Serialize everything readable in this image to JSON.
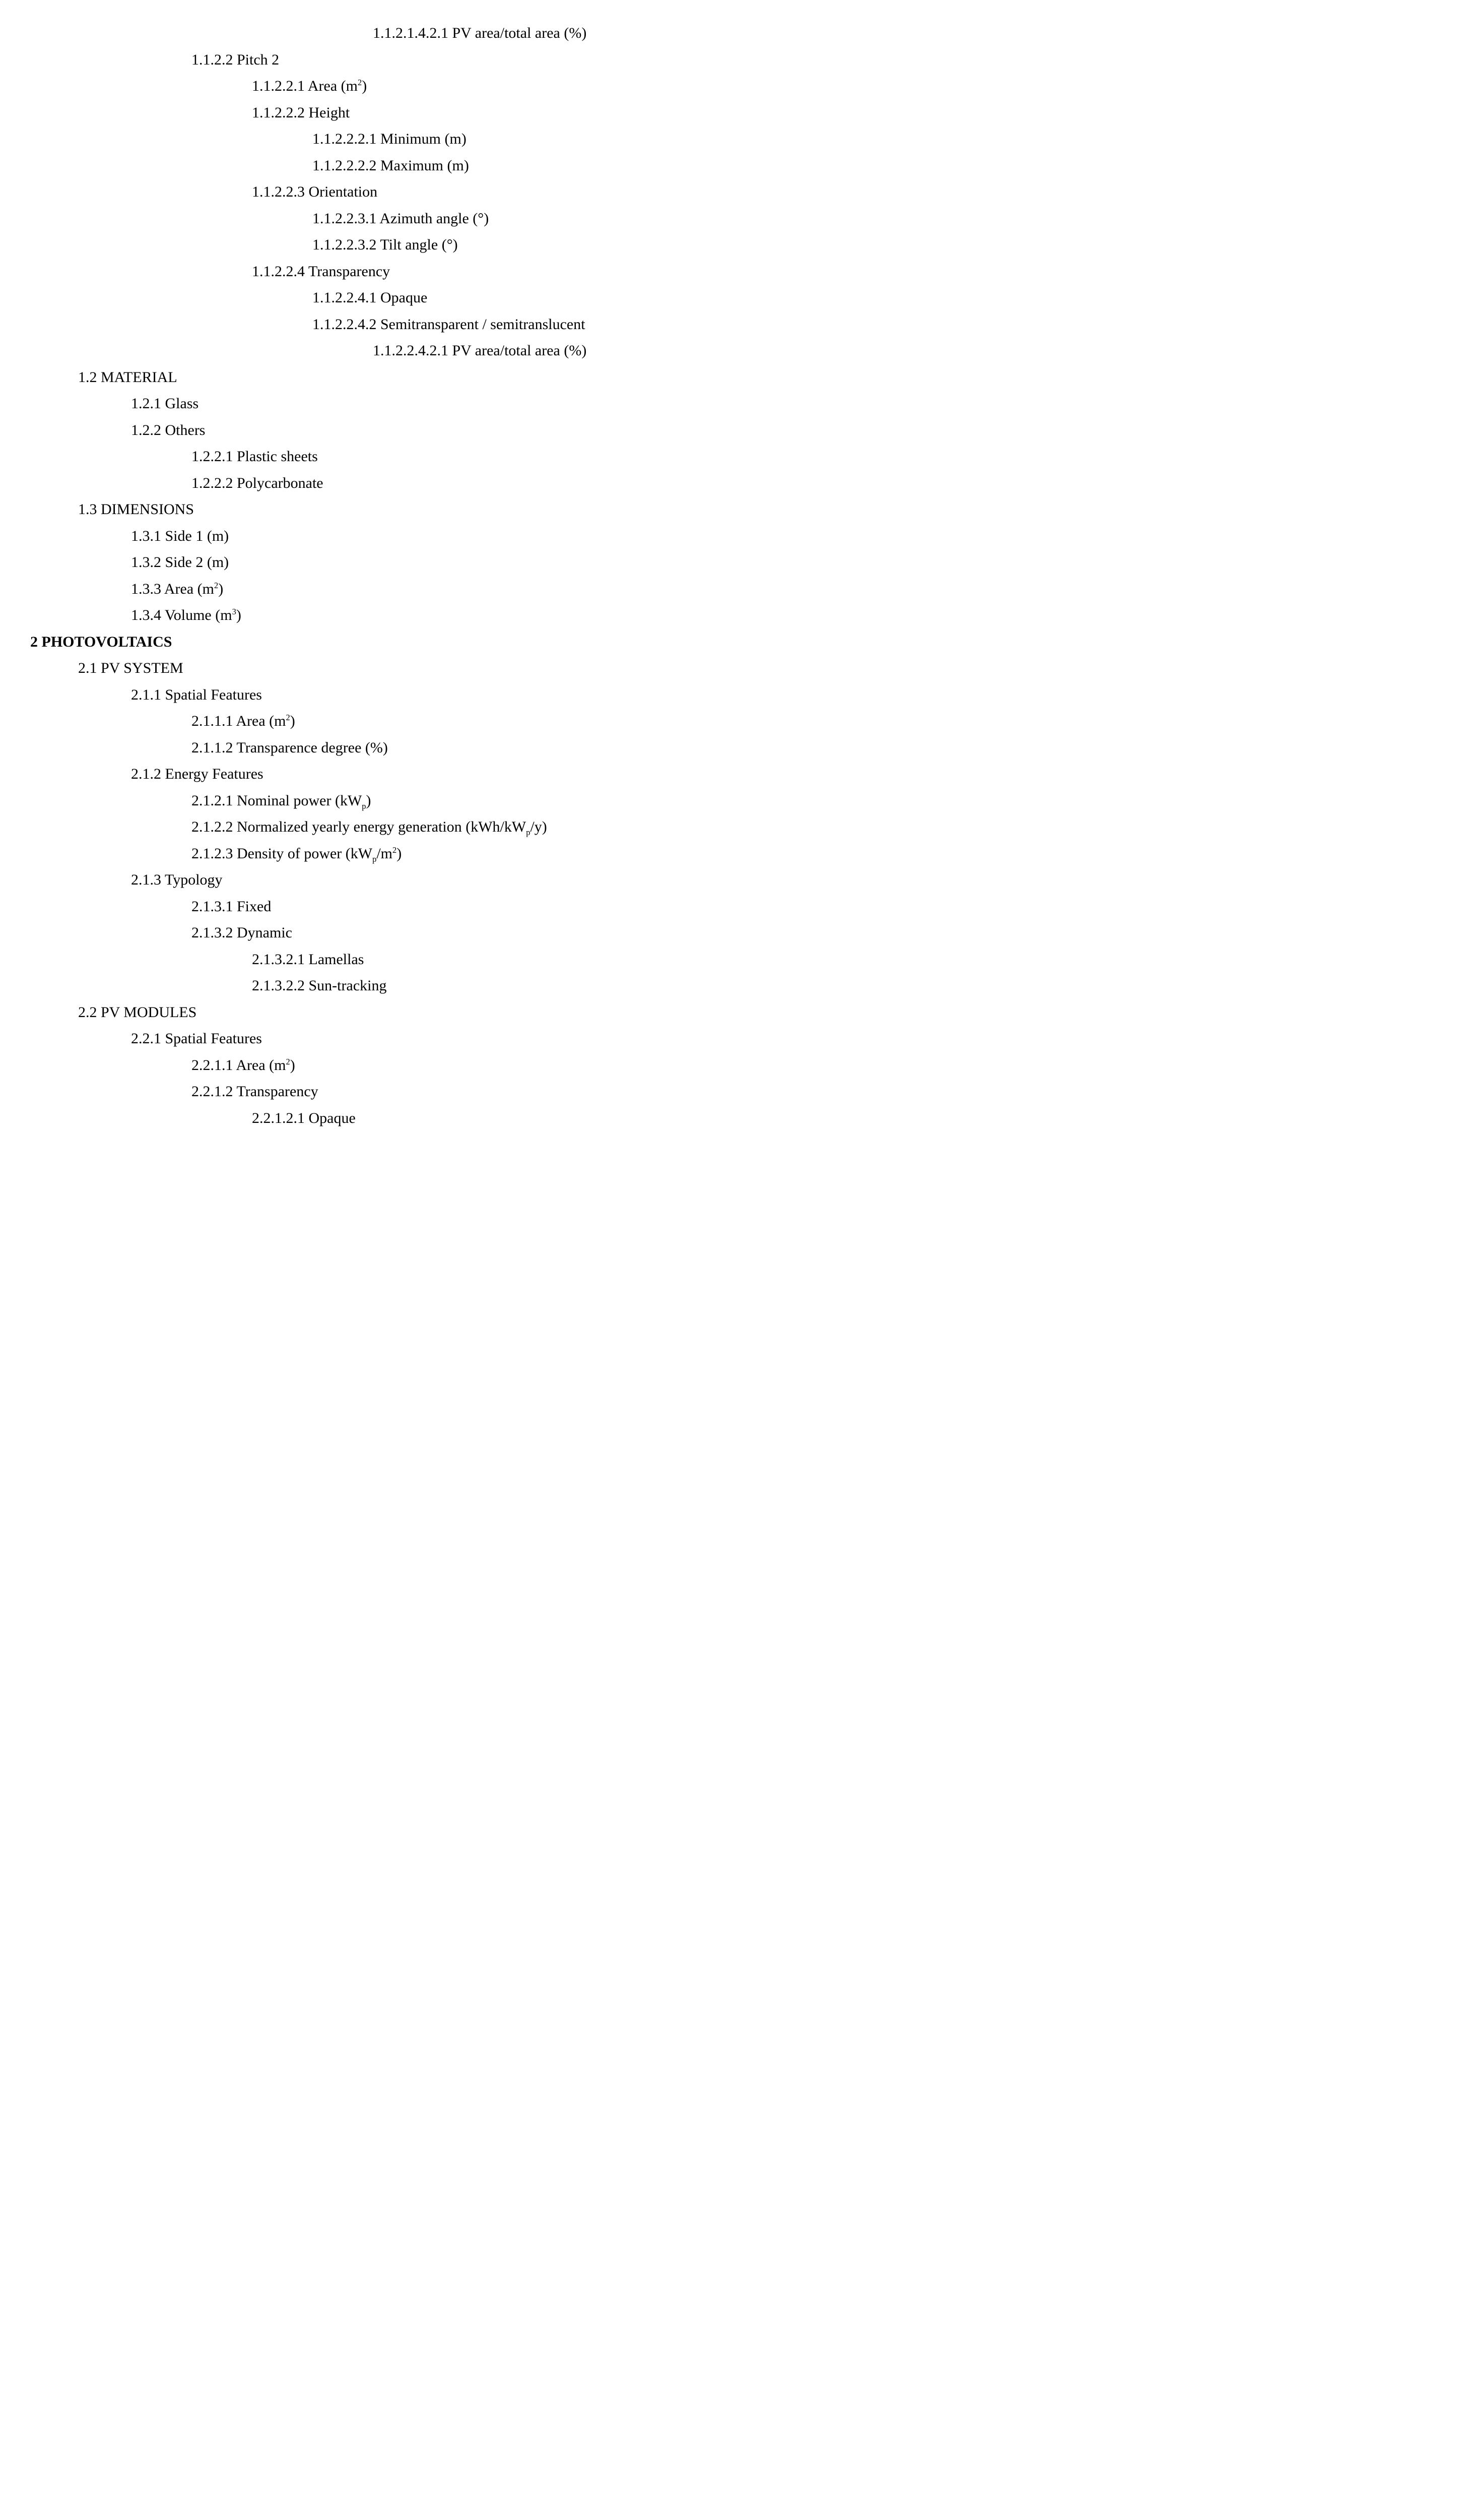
{
  "items": [
    {
      "level": 6,
      "bold": false,
      "text": "1.1.2.1.4.2.1 PV area/total area (%)"
    },
    {
      "level": 3,
      "bold": false,
      "text": "1.1.2.2 Pitch 2"
    },
    {
      "level": 4,
      "bold": false,
      "html": "1.1.2.2.1 Area (m<sup>2</sup>)"
    },
    {
      "level": 4,
      "bold": false,
      "text": "1.1.2.2.2 Height"
    },
    {
      "level": 5,
      "bold": false,
      "text": "1.1.2.2.2.1 Minimum (m)"
    },
    {
      "level": 5,
      "bold": false,
      "text": "1.1.2.2.2.2 Maximum (m)"
    },
    {
      "level": 4,
      "bold": false,
      "text": "1.1.2.2.3 Orientation"
    },
    {
      "level": 5,
      "bold": false,
      "text": "1.1.2.2.3.1 Azimuth angle (°)"
    },
    {
      "level": 5,
      "bold": false,
      "text": "1.1.2.2.3.2 Tilt angle (°)"
    },
    {
      "level": 4,
      "bold": false,
      "text": "1.1.2.2.4 Transparency"
    },
    {
      "level": 5,
      "bold": false,
      "text": "1.1.2.2.4.1 Opaque"
    },
    {
      "level": 5,
      "bold": false,
      "text": "1.1.2.2.4.2 Semitransparent / semitranslucent"
    },
    {
      "level": 6,
      "bold": false,
      "text": "1.1.2.2.4.2.1 PV area/total area (%)"
    },
    {
      "level": 1,
      "bold": false,
      "text": "1.2 MATERIAL"
    },
    {
      "level": 2,
      "bold": false,
      "text": "1.2.1 Glass"
    },
    {
      "level": 2,
      "bold": false,
      "text": "1.2.2 Others"
    },
    {
      "level": 3,
      "bold": false,
      "text": "1.2.2.1 Plastic sheets"
    },
    {
      "level": 3,
      "bold": false,
      "text": "1.2.2.2 Polycarbonate"
    },
    {
      "level": 1,
      "bold": false,
      "text": "1.3 DIMENSIONS"
    },
    {
      "level": 2,
      "bold": false,
      "text": "1.3.1 Side 1 (m)"
    },
    {
      "level": 2,
      "bold": false,
      "text": "1.3.2 Side 2 (m)"
    },
    {
      "level": 2,
      "bold": false,
      "html": "1.3.3 Area (m<sup>2</sup>)"
    },
    {
      "level": 2,
      "bold": false,
      "html": "1.3.4 Volume (m<sup>3</sup>)"
    },
    {
      "level": 0,
      "bold": true,
      "text": "2 PHOTOVOLTAICS"
    },
    {
      "level": 1,
      "bold": false,
      "text": "2.1 PV SYSTEM"
    },
    {
      "level": 2,
      "bold": false,
      "text": "2.1.1 Spatial Features"
    },
    {
      "level": 3,
      "bold": false,
      "html": "2.1.1.1 Area (m<sup>2</sup>)"
    },
    {
      "level": 3,
      "bold": false,
      "text": "2.1.1.2 Transparence degree (%)"
    },
    {
      "level": 2,
      "bold": false,
      "text": "2.1.2 Energy Features"
    },
    {
      "level": 3,
      "bold": false,
      "html": "2.1.2.1 Nominal power (kW<sub>p</sub>)"
    },
    {
      "level": 3,
      "bold": false,
      "html": "2.1.2.2 Normalized yearly energy generation (kWh/kW<sub>p</sub>/y)"
    },
    {
      "level": 3,
      "bold": false,
      "html": "2.1.2.3 Density of power (kW<sub>p</sub>/m<sup>2</sup>)"
    },
    {
      "level": 2,
      "bold": false,
      "text": "2.1.3 Typology"
    },
    {
      "level": 3,
      "bold": false,
      "text": "2.1.3.1 Fixed"
    },
    {
      "level": 3,
      "bold": false,
      "text": "2.1.3.2 Dynamic"
    },
    {
      "level": 4,
      "bold": false,
      "text": "2.1.3.2.1 Lamellas"
    },
    {
      "level": 4,
      "bold": false,
      "text": "2.1.3.2.2 Sun-tracking"
    },
    {
      "level": 1,
      "bold": false,
      "text": "2.2 PV MODULES"
    },
    {
      "level": 2,
      "bold": false,
      "text": "2.2.1 Spatial Features"
    },
    {
      "level": 3,
      "bold": false,
      "html": "2.2.1.1 Area (m<sup>2</sup>)"
    },
    {
      "level": 3,
      "bold": false,
      "text": "2.2.1.2 Transparency"
    },
    {
      "level": 4,
      "bold": false,
      "text": "2.2.1.2.1 Opaque"
    }
  ]
}
